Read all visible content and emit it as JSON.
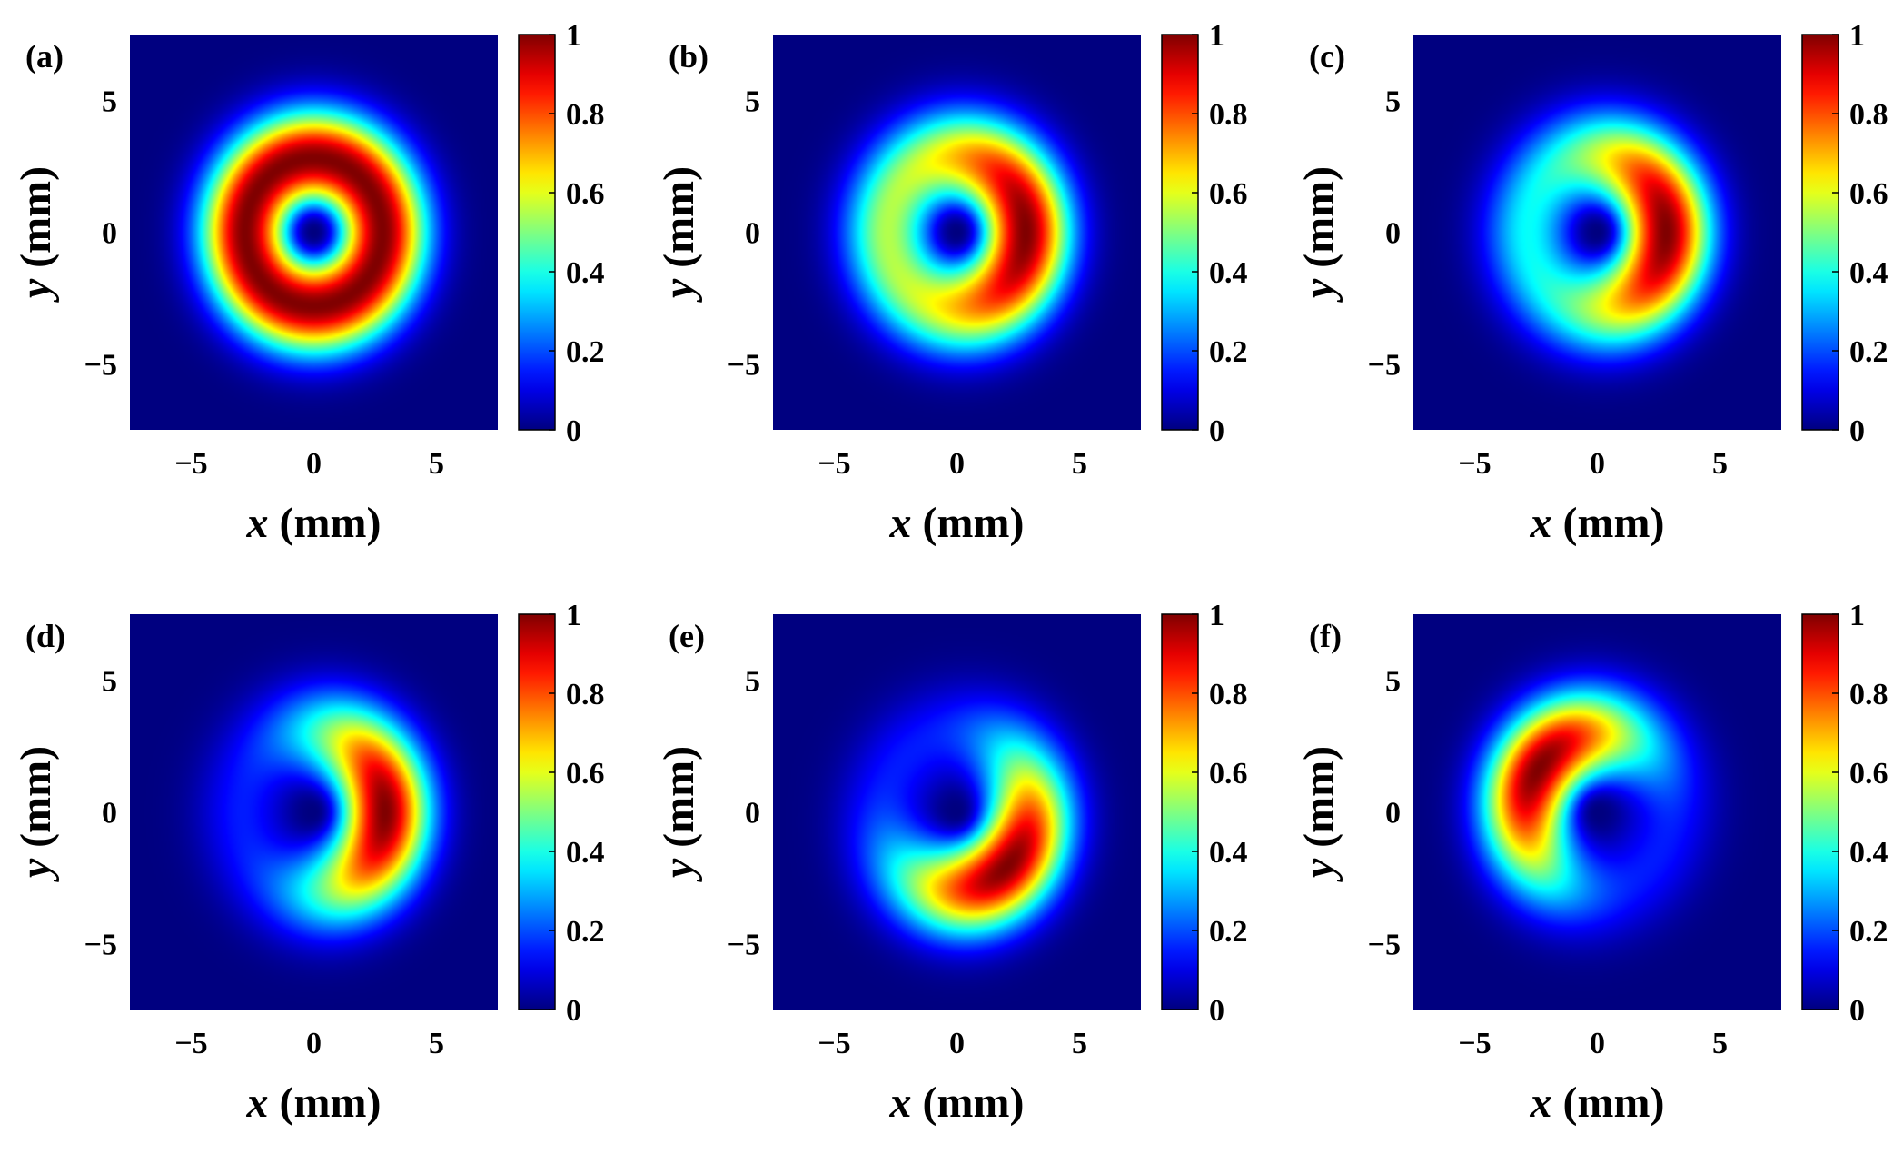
{
  "figure": {
    "description_labels": [
      "(a)",
      "(b)",
      "(c)",
      "(d)",
      "(e)",
      "(f)"
    ]
  },
  "colors": {
    "colormap": "jet",
    "background": "#ffffff",
    "text": "#000000"
  },
  "chart_data": [
    {
      "type": "heatmap",
      "panel_label": "(a)",
      "xlabel": "x (mm)",
      "ylabel": "y (mm)",
      "xlim": [
        -7.5,
        7.5
      ],
      "ylim": [
        -7.5,
        7.5
      ],
      "xticks": [
        -5,
        0,
        5
      ],
      "xtick_labels": [
        "−5",
        "0",
        "5"
      ],
      "yticks": [
        5,
        0,
        -5
      ],
      "ytick_labels": [
        "5",
        "0",
        "−5"
      ],
      "colorbar": {
        "range": [
          0,
          1
        ],
        "ticks": [
          1,
          0.8,
          0.6,
          0.4,
          0.2,
          0
        ],
        "tick_labels": [
          "1",
          "0.8",
          "0.6",
          "0.4",
          "0.2",
          "0"
        ]
      },
      "field": {
        "ring_radius_mm": 2.8,
        "ring_width_mm": 1.8,
        "dark_core_radius_mm": 0.9,
        "crescent_angle_deg": 0,
        "crescent_strength": 0.0,
        "peak": 1.0
      }
    },
    {
      "type": "heatmap",
      "panel_label": "(b)",
      "xlabel": "x (mm)",
      "ylabel": "y (mm)",
      "xlim": [
        -7.5,
        7.5
      ],
      "ylim": [
        -7.5,
        7.5
      ],
      "xticks": [
        -5,
        0,
        5
      ],
      "xtick_labels": [
        "−5",
        "0",
        "5"
      ],
      "yticks": [
        5,
        0,
        -5
      ],
      "ytick_labels": [
        "5",
        "0",
        "−5"
      ],
      "colorbar": {
        "range": [
          0,
          1
        ],
        "ticks": [
          1,
          0.8,
          0.6,
          0.4,
          0.2,
          0
        ],
        "tick_labels": [
          "1",
          "0.8",
          "0.6",
          "0.4",
          "0.2",
          "0"
        ]
      },
      "field": {
        "ring_radius_mm": 2.8,
        "ring_width_mm": 1.8,
        "dark_core_radius_mm": 0.9,
        "crescent_angle_deg": 0,
        "crescent_strength": 0.45,
        "peak": 1.0
      }
    },
    {
      "type": "heatmap",
      "panel_label": "(c)",
      "xlabel": "x (mm)",
      "ylabel": "y (mm)",
      "xlim": [
        -7.5,
        7.5
      ],
      "ylim": [
        -7.5,
        7.5
      ],
      "xticks": [
        -5,
        0,
        5
      ],
      "xtick_labels": [
        "−5",
        "0",
        "5"
      ],
      "yticks": [
        5,
        0,
        -5
      ],
      "ytick_labels": [
        "5",
        "0",
        "−5"
      ],
      "colorbar": {
        "range": [
          0,
          1
        ],
        "ticks": [
          1,
          0.8,
          0.6,
          0.4,
          0.2,
          0
        ],
        "tick_labels": [
          "1",
          "0.8",
          "0.6",
          "0.4",
          "0.2",
          "0"
        ]
      },
      "field": {
        "ring_radius_mm": 2.8,
        "ring_width_mm": 1.8,
        "dark_core_radius_mm": 0.9,
        "crescent_angle_deg": 0,
        "crescent_strength": 0.62,
        "peak": 1.0
      }
    },
    {
      "type": "heatmap",
      "panel_label": "(d)",
      "xlabel": "x (mm)",
      "ylabel": "y (mm)",
      "xlim": [
        -7.5,
        7.5
      ],
      "ylim": [
        -7.5,
        7.5
      ],
      "xticks": [
        -5,
        0,
        5
      ],
      "xtick_labels": [
        "−5",
        "0",
        "5"
      ],
      "yticks": [
        5,
        0,
        -5
      ],
      "ytick_labels": [
        "5",
        "0",
        "−5"
      ],
      "colorbar": {
        "range": [
          0,
          1
        ],
        "ticks": [
          1,
          0.8,
          0.6,
          0.4,
          0.2,
          0
        ],
        "tick_labels": [
          "1",
          "0.8",
          "0.6",
          "0.4",
          "0.2",
          "0"
        ]
      },
      "field": {
        "ring_radius_mm": 2.9,
        "ring_width_mm": 1.8,
        "dark_core_radius_mm": 0.9,
        "crescent_angle_deg": 0,
        "crescent_strength": 0.85,
        "peak": 1.0
      }
    },
    {
      "type": "heatmap",
      "panel_label": "(e)",
      "xlabel": "x (mm)",
      "ylabel": "y (mm)",
      "xlim": [
        -7.5,
        7.5
      ],
      "ylim": [
        -7.5,
        7.5
      ],
      "xticks": [
        -5,
        0,
        5
      ],
      "xtick_labels": [
        "−5",
        "0",
        "5"
      ],
      "yticks": [
        5,
        0,
        -5
      ],
      "ytick_labels": [
        "5",
        "0",
        "−5"
      ],
      "colorbar": {
        "range": [
          0,
          1
        ],
        "ticks": [
          1,
          0.8,
          0.6,
          0.4,
          0.2,
          0
        ],
        "tick_labels": [
          "1",
          "0.8",
          "0.6",
          "0.4",
          "0.2",
          "0"
        ]
      },
      "field": {
        "ring_radius_mm": 2.9,
        "ring_width_mm": 1.8,
        "dark_core_radius_mm": 0.9,
        "crescent_angle_deg": -45,
        "crescent_strength": 0.85,
        "peak": 1.0
      }
    },
    {
      "type": "heatmap",
      "panel_label": "(f)",
      "xlabel": "x (mm)",
      "ylabel": "y (mm)",
      "xlim": [
        -7.5,
        7.5
      ],
      "ylim": [
        -7.5,
        7.5
      ],
      "xticks": [
        -5,
        0,
        5
      ],
      "xtick_labels": [
        "−5",
        "0",
        "5"
      ],
      "yticks": [
        5,
        0,
        -5
      ],
      "ytick_labels": [
        "5",
        "0",
        "−5"
      ],
      "colorbar": {
        "range": [
          0,
          1
        ],
        "ticks": [
          1,
          0.8,
          0.6,
          0.4,
          0.2,
          0
        ],
        "tick_labels": [
          "1",
          "0.8",
          "0.6",
          "0.4",
          "0.2",
          "0"
        ]
      },
      "field": {
        "ring_radius_mm": 2.9,
        "ring_width_mm": 1.8,
        "dark_core_radius_mm": 0.9,
        "crescent_angle_deg": 145,
        "crescent_strength": 0.85,
        "peak": 1.0
      }
    }
  ]
}
